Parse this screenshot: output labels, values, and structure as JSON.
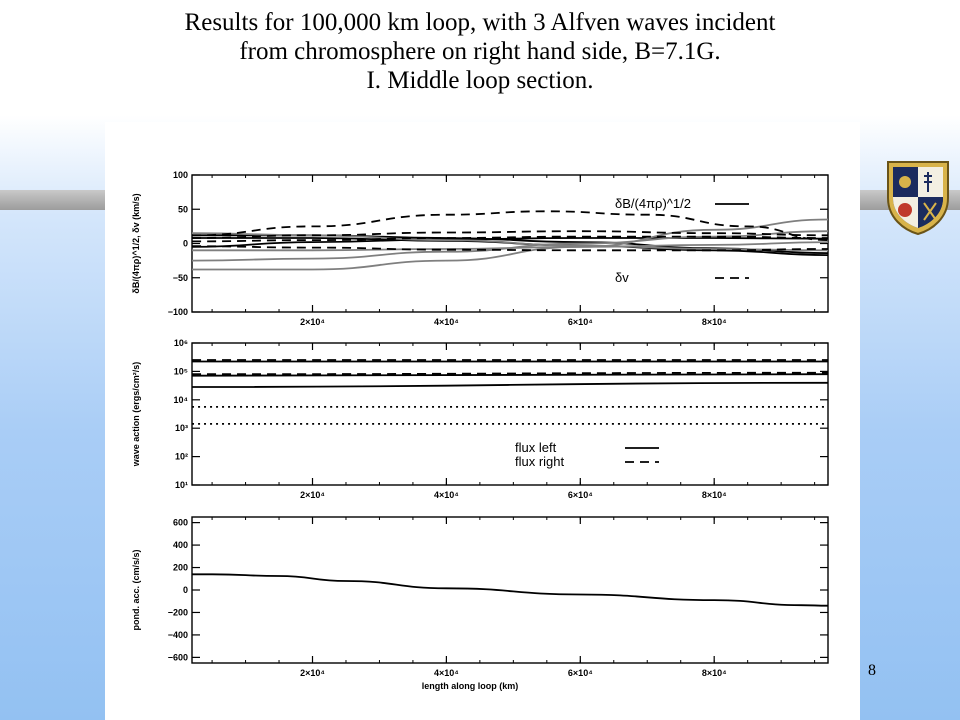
{
  "title_lines": [
    "Results for 100,000 km loop, with 3 Alfven waves incident",
    "from chromosphere on right hand side, B=7.1G.",
    "I. Middle loop section."
  ],
  "slide_number": "8",
  "logo_icon": "university-crest-icon",
  "colors": {
    "panel": "#ffffff",
    "axes": "#000000",
    "gray_series": "#7f7f7f"
  },
  "chart_data": [
    {
      "type": "line",
      "ylabel": "δB/(4πρ)^1/2, δv (km/s)",
      "xlim": [
        2000,
        97000
      ],
      "ylim": [
        -100,
        100
      ],
      "xticks": [
        20000,
        40000,
        60000,
        80000
      ],
      "xtick_labels": [
        "2×10⁴",
        "4×10⁴",
        "6×10⁴",
        "8×10⁴"
      ],
      "yticks": [
        -100,
        -50,
        0,
        50,
        100
      ],
      "ytick_labels": [
        "−100",
        "−50",
        "0",
        "50",
        "100"
      ],
      "legend": {
        "position": "top-right",
        "entries": [
          {
            "label": "δB/(4πρ)^1/2",
            "style": "solid"
          },
          {
            "label": "δv",
            "style": "dashed"
          }
        ]
      },
      "series": [
        {
          "style": "solid",
          "color": "black",
          "x": [
            2000,
            20000,
            40000,
            60000,
            80000,
            97000
          ],
          "y": [
            12,
            12,
            8,
            2,
            -7,
            -14
          ]
        },
        {
          "style": "solid",
          "color": "black",
          "x": [
            2000,
            20000,
            40000,
            60000,
            80000,
            97000
          ],
          "y": [
            8,
            8,
            4,
            -3,
            -10,
            -17
          ]
        },
        {
          "style": "solid",
          "color": "black",
          "x": [
            2000,
            20000,
            40000,
            60000,
            80000,
            97000
          ],
          "y": [
            -5,
            2,
            6,
            8,
            8,
            7
          ]
        },
        {
          "style": "solid",
          "color": "gray",
          "x": [
            2000,
            20000,
            40000,
            60000,
            80000,
            97000
          ],
          "y": [
            -38,
            -38,
            -25,
            -5,
            20,
            35
          ]
        },
        {
          "style": "solid",
          "color": "gray",
          "x": [
            2000,
            20000,
            40000,
            60000,
            80000,
            97000
          ],
          "y": [
            -25,
            -22,
            -12,
            0,
            10,
            18
          ]
        },
        {
          "style": "solid",
          "color": "gray",
          "x": [
            2000,
            20000,
            40000,
            60000,
            80000,
            97000
          ],
          "y": [
            -10,
            -10,
            -8,
            -5,
            -2,
            2
          ]
        },
        {
          "style": "solid",
          "color": "gray",
          "x": [
            2000,
            20000,
            40000,
            60000,
            80000,
            97000
          ],
          "y": [
            15,
            12,
            5,
            -3,
            -8,
            -10
          ]
        },
        {
          "style": "dashed",
          "color": "black",
          "x": [
            2000,
            20000,
            40000,
            55000,
            70000,
            85000,
            97000
          ],
          "y": [
            12,
            25,
            42,
            47,
            42,
            25,
            5
          ]
        },
        {
          "style": "dashed",
          "color": "black",
          "x": [
            2000,
            20000,
            40000,
            60000,
            80000,
            97000
          ],
          "y": [
            8,
            12,
            16,
            18,
            15,
            12
          ]
        },
        {
          "style": "dashed",
          "color": "black",
          "x": [
            2000,
            20000,
            40000,
            60000,
            80000,
            97000
          ],
          "y": [
            3,
            5,
            8,
            10,
            10,
            8
          ]
        },
        {
          "style": "dashed",
          "color": "black",
          "x": [
            2000,
            20000,
            40000,
            60000,
            80000,
            97000
          ],
          "y": [
            -4,
            -6,
            -9,
            -10,
            -10,
            -8
          ]
        }
      ]
    },
    {
      "type": "line",
      "ylabel": "wave action (ergs/cm²/s)",
      "xlim": [
        2000,
        97000
      ],
      "ylim_log10": [
        1,
        6
      ],
      "yscale": "log",
      "xticks": [
        20000,
        40000,
        60000,
        80000
      ],
      "xtick_labels": [
        "2×10⁴",
        "4×10⁴",
        "6×10⁴",
        "8×10⁴"
      ],
      "yticks_log10": [
        1,
        2,
        3,
        4,
        5,
        6
      ],
      "ytick_labels": [
        "10¹",
        "10²",
        "10³",
        "10⁴",
        "10⁵",
        "10⁶"
      ],
      "legend": {
        "position": "lower-right",
        "entries": [
          {
            "label": "flux left",
            "style": "solid"
          },
          {
            "label": "flux right",
            "style": "dashed"
          }
        ]
      },
      "series": [
        {
          "style": "solid",
          "color": "black",
          "x": [
            2000,
            97000
          ],
          "y_log10": [
            5.35,
            5.35
          ]
        },
        {
          "style": "dashed",
          "color": "black",
          "x": [
            2000,
            97000
          ],
          "y_log10": [
            5.4,
            5.4
          ]
        },
        {
          "style": "solid",
          "color": "black",
          "x": [
            2000,
            97000
          ],
          "y_log10": [
            4.85,
            4.9
          ]
        },
        {
          "style": "dashed",
          "color": "black",
          "x": [
            2000,
            97000
          ],
          "y_log10": [
            4.9,
            4.95
          ]
        },
        {
          "style": "solid",
          "color": "black",
          "x": [
            2000,
            97000
          ],
          "y_log10": [
            4.45,
            4.6
          ]
        },
        {
          "style": "dotted",
          "color": "black",
          "x": [
            2000,
            97000
          ],
          "y_log10": [
            3.75,
            3.75
          ]
        },
        {
          "style": "dotted",
          "color": "black",
          "x": [
            2000,
            97000
          ],
          "y_log10": [
            3.15,
            3.15
          ]
        }
      ]
    },
    {
      "type": "line",
      "ylabel": "pond. acc. (cm/s/s)",
      "xlabel": "length along loop (km)",
      "xlim": [
        2000,
        97000
      ],
      "ylim": [
        -650,
        650
      ],
      "xticks": [
        20000,
        40000,
        60000,
        80000
      ],
      "xtick_labels": [
        "2×10⁴",
        "4×10⁴",
        "6×10⁴",
        "8×10⁴"
      ],
      "yticks": [
        -600,
        -400,
        -200,
        0,
        200,
        400,
        600
      ],
      "ytick_labels": [
        "−600",
        "−400",
        "−200",
        "0",
        "200",
        "400",
        "600"
      ],
      "series": [
        {
          "style": "solid",
          "color": "black",
          "x": [
            2000,
            5000,
            15000,
            25000,
            40000,
            60000,
            80000,
            93000,
            97000
          ],
          "y": [
            140,
            140,
            125,
            80,
            15,
            -40,
            -90,
            -135,
            -140
          ]
        }
      ]
    }
  ]
}
